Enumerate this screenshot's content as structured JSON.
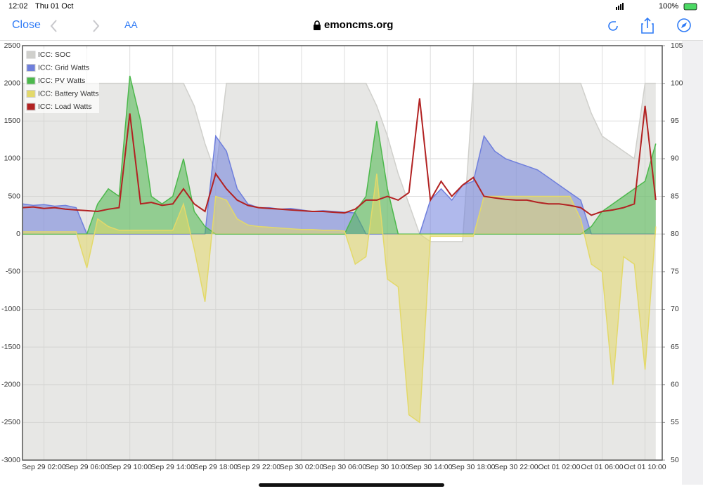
{
  "status_bar": {
    "time": "12:02",
    "date": "Thu 01 Oct",
    "battery": "100%"
  },
  "browser": {
    "close": "Close",
    "text_size": "AA",
    "url": "emoncms.org"
  },
  "chart_data": {
    "type": "area",
    "x": [
      "Sep 29 00:00",
      "Sep 29 01:00",
      "Sep 29 02:00",
      "Sep 29 03:00",
      "Sep 29 04:00",
      "Sep 29 05:00",
      "Sep 29 06:00",
      "Sep 29 07:00",
      "Sep 29 08:00",
      "Sep 29 09:00",
      "Sep 29 10:00",
      "Sep 29 11:00",
      "Sep 29 12:00",
      "Sep 29 13:00",
      "Sep 29 14:00",
      "Sep 29 15:00",
      "Sep 29 16:00",
      "Sep 29 17:00",
      "Sep 29 18:00",
      "Sep 29 19:00",
      "Sep 29 20:00",
      "Sep 29 21:00",
      "Sep 29 22:00",
      "Sep 29 23:00",
      "Sep 30 00:00",
      "Sep 30 01:00",
      "Sep 30 02:00",
      "Sep 30 03:00",
      "Sep 30 04:00",
      "Sep 30 05:00",
      "Sep 30 06:00",
      "Sep 30 07:00",
      "Sep 30 08:00",
      "Sep 30 09:00",
      "Sep 30 10:00",
      "Sep 30 11:00",
      "Sep 30 12:00",
      "Sep 30 13:00",
      "Sep 30 14:00",
      "Sep 30 15:00",
      "Sep 30 16:00",
      "Sep 30 17:00",
      "Sep 30 18:00",
      "Sep 30 19:00",
      "Sep 30 20:00",
      "Sep 30 21:00",
      "Sep 30 22:00",
      "Sep 30 23:00",
      "Oct 01 00:00",
      "Oct 01 01:00",
      "Oct 01 02:00",
      "Oct 01 03:00",
      "Oct 01 04:00",
      "Oct 01 05:00",
      "Oct 01 06:00",
      "Oct 01 07:00",
      "Oct 01 08:00",
      "Oct 01 09:00",
      "Oct 01 10:00",
      "Oct 01 11:00"
    ],
    "xlim": [
      "Sep 29 00:00",
      "Oct 01 11:36"
    ],
    "xticks": [
      "Sep 29 02:00",
      "Sep 29 06:00",
      "Sep 29 10:00",
      "Sep 29 14:00",
      "Sep 29 18:00",
      "Sep 29 22:00",
      "Sep 30 02:00",
      "Sep 30 06:00",
      "Sep 30 10:00",
      "Sep 30 14:00",
      "Sep 30 18:00",
      "Sep 30 22:00",
      "Oct 01 02:00",
      "Oct 01 06:00",
      "Oct 01 10:00"
    ],
    "ylim": [
      -3000,
      2500
    ],
    "yticks": [
      -3000,
      -2500,
      -2000,
      -1500,
      -1000,
      -500,
      0,
      500,
      1000,
      1500,
      2000,
      2500
    ],
    "y2lim": [
      50,
      105
    ],
    "y2ticks": [
      50,
      55,
      60,
      65,
      70,
      75,
      80,
      85,
      90,
      95,
      100,
      105
    ],
    "legend": "top-left",
    "series": [
      {
        "name": "ICC: SOC",
        "color": "#d0d0cc",
        "axis": "y2",
        "values": [
          100,
          100,
          100,
          100,
          100,
          100,
          100,
          100,
          100,
          100,
          100,
          100,
          100,
          100,
          100,
          100,
          97,
          92,
          88,
          100,
          100,
          100,
          100,
          100,
          100,
          100,
          100,
          100,
          100,
          100,
          100,
          100,
          100,
          97,
          93,
          88,
          84,
          80,
          79,
          79,
          79,
          79,
          100,
          100,
          100,
          100,
          100,
          100,
          100,
          100,
          100,
          100,
          100,
          96,
          93,
          92,
          91,
          90,
          100,
          100
        ]
      },
      {
        "name": "ICC: Grid Watts",
        "color": "#6f7fdc",
        "values": [
          400,
          380,
          390,
          370,
          380,
          350,
          0,
          0,
          0,
          0,
          0,
          0,
          0,
          0,
          0,
          0,
          0,
          0,
          1300,
          1100,
          600,
          400,
          350,
          350,
          330,
          340,
          320,
          300,
          310,
          300,
          290,
          280,
          0,
          0,
          0,
          0,
          0,
          0,
          450,
          600,
          450,
          650,
          700,
          1300,
          1100,
          1000,
          950,
          900,
          850,
          750,
          650,
          550,
          450,
          0,
          0,
          0,
          0,
          0,
          0,
          0
        ]
      },
      {
        "name": "ICC: PV Watts",
        "color": "#4cb84c",
        "values": [
          0,
          0,
          0,
          0,
          0,
          0,
          0,
          400,
          600,
          500,
          2100,
          1500,
          500,
          400,
          500,
          1000,
          300,
          100,
          0,
          0,
          0,
          0,
          0,
          0,
          0,
          0,
          0,
          0,
          0,
          0,
          0,
          300,
          500,
          1500,
          600,
          0,
          0,
          0,
          0,
          0,
          0,
          0,
          0,
          0,
          0,
          0,
          0,
          0,
          0,
          0,
          0,
          0,
          0,
          100,
          300,
          400,
          500,
          600,
          700,
          1200
        ]
      },
      {
        "name": "ICC: Battery Watts",
        "color": "#e3d96a",
        "values": [
          30,
          30,
          30,
          30,
          30,
          30,
          -450,
          200,
          100,
          50,
          50,
          50,
          50,
          50,
          50,
          400,
          -200,
          -900,
          500,
          450,
          200,
          120,
          100,
          90,
          80,
          70,
          60,
          60,
          50,
          50,
          40,
          -400,
          -300,
          800,
          -600,
          -700,
          -2400,
          -2500,
          -30,
          -30,
          -30,
          -30,
          -30,
          500,
          500,
          500,
          500,
          500,
          500,
          500,
          500,
          500,
          200,
          -400,
          -500,
          -2000,
          -300,
          -400,
          -1800,
          100
        ]
      },
      {
        "name": "ICC: Load Watts",
        "color": "#b22222",
        "values": [
          350,
          360,
          340,
          350,
          330,
          320,
          310,
          300,
          330,
          350,
          1600,
          400,
          420,
          380,
          400,
          600,
          400,
          300,
          800,
          600,
          450,
          380,
          350,
          340,
          330,
          320,
          310,
          300,
          300,
          290,
          280,
          330,
          450,
          450,
          500,
          450,
          550,
          1800,
          450,
          700,
          500,
          650,
          750,
          500,
          480,
          460,
          450,
          450,
          420,
          400,
          400,
          380,
          350,
          250,
          300,
          320,
          350,
          400,
          1700,
          450
        ]
      }
    ]
  }
}
